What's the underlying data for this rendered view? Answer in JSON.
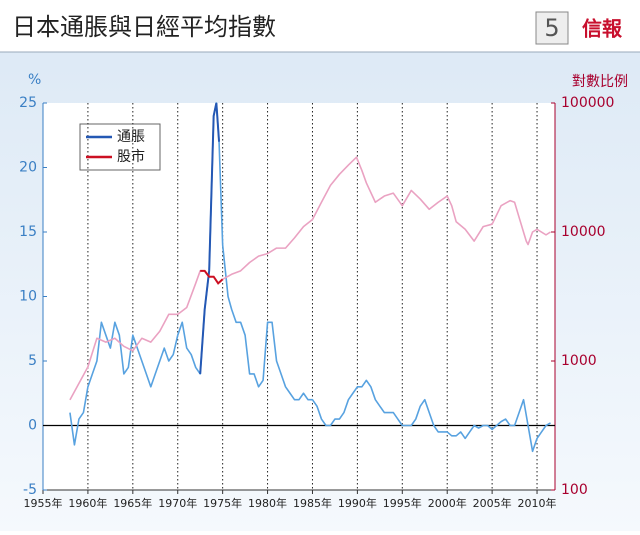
{
  "chart_data": {
    "type": "line",
    "title": "日本通脹與日經平均指數",
    "badge": "5",
    "source": "信報",
    "ylabel": "%",
    "y2label": "對數比例",
    "xlim": [
      1955,
      2012
    ],
    "xticks": [
      {
        "value": 1955,
        "label": "1955年"
      },
      {
        "value": 1960,
        "label": "1960年"
      },
      {
        "value": 1965,
        "label": "1965年"
      },
      {
        "value": 1970,
        "label": "1970年"
      },
      {
        "value": 1975,
        "label": "1975年"
      },
      {
        "value": 1980,
        "label": "1980年"
      },
      {
        "value": 1985,
        "label": "1985年"
      },
      {
        "value": 1990,
        "label": "1990年"
      },
      {
        "value": 1995,
        "label": "1995年"
      },
      {
        "value": 2000,
        "label": "2000年"
      },
      {
        "value": 2005,
        "label": "2005年"
      },
      {
        "value": 2010,
        "label": "2010年"
      }
    ],
    "ylim": [
      -5,
      25
    ],
    "yticks": [
      -5,
      0,
      5,
      10,
      15,
      20,
      25
    ],
    "y2lim": [
      100,
      100000
    ],
    "y2ticks": [
      100,
      1000,
      10000,
      100000
    ],
    "y2log": true,
    "grid": true,
    "zero_line": 0,
    "legend": "top-left",
    "series": [
      {
        "name": "通脹",
        "color": "#58a2e0",
        "highlight_color": "#2458b4",
        "highlight_range": [
          1972.5,
          1974.6
        ],
        "x": [
          1958,
          1958.5,
          1959,
          1959.5,
          1960,
          1960.5,
          1961,
          1961.5,
          1962,
          1962.5,
          1963,
          1963.5,
          1964,
          1964.5,
          1965,
          1965.5,
          1966,
          1966.5,
          1967,
          1967.5,
          1968,
          1968.5,
          1969,
          1969.5,
          1970,
          1970.5,
          1971,
          1971.5,
          1972,
          1972.5,
          1973,
          1973.5,
          1974,
          1974.3,
          1974.6,
          1975,
          1975.3,
          1975.6,
          1976,
          1976.5,
          1977,
          1977.5,
          1978,
          1978.5,
          1979,
          1979.5,
          1980,
          1980.5,
          1981,
          1981.5,
          1982,
          1982.5,
          1983,
          1983.5,
          1984,
          1984.5,
          1985,
          1985.5,
          1986,
          1986.5,
          1987,
          1987.5,
          1988,
          1988.5,
          1989,
          1989.5,
          1990,
          1990.5,
          1991,
          1991.5,
          1992,
          1992.5,
          1993,
          1993.5,
          1994,
          1994.5,
          1995,
          1995.5,
          1996,
          1996.5,
          1997,
          1997.5,
          1998,
          1998.5,
          1999,
          1999.5,
          2000,
          2000.5,
          2001,
          2001.5,
          2002,
          2002.5,
          2003,
          2003.5,
          2004,
          2004.5,
          2005,
          2005.5,
          2006,
          2006.5,
          2007,
          2007.5,
          2008,
          2008.5,
          2009,
          2009.5,
          2010,
          2010.5,
          2011,
          2011.5
        ],
        "values": [
          1,
          -1.5,
          0.5,
          1,
          3,
          4,
          5,
          8,
          7,
          6,
          8,
          7,
          4,
          4.5,
          7,
          6,
          5,
          4,
          3,
          4,
          5,
          6,
          5,
          5.5,
          7,
          8,
          6,
          5.5,
          4.5,
          4,
          9,
          12,
          24,
          25,
          22,
          14,
          12,
          10,
          9,
          8,
          8,
          7,
          4,
          4,
          3,
          3.5,
          8,
          8,
          5,
          4,
          3,
          2.5,
          2,
          2,
          2.5,
          2,
          2,
          1.5,
          0.5,
          0,
          0,
          0.5,
          0.5,
          1,
          2,
          2.5,
          3,
          3,
          3.5,
          3,
          2,
          1.5,
          1,
          1,
          1,
          0.5,
          0,
          0,
          0,
          0.5,
          1.5,
          2,
          1,
          0,
          -0.5,
          -0.5,
          -0.5,
          -0.8,
          -0.8,
          -0.5,
          -1,
          -0.5,
          0,
          -0.2,
          0,
          0,
          -0.3,
          0,
          0.3,
          0.5,
          0,
          0,
          1,
          2,
          0,
          -2,
          -1,
          -0.5,
          0,
          0.2
        ]
      },
      {
        "name": "股市",
        "color": "#eaa2c2",
        "highlight_color": "#cc1022",
        "highlight_range": [
          1972.5,
          1975
        ],
        "axis": "y2",
        "x": [
          1958,
          1960,
          1961,
          1962,
          1963,
          1964,
          1965,
          1966,
          1967,
          1968,
          1969,
          1970,
          1971,
          1972,
          1972.5,
          1973,
          1973.5,
          1974,
          1974.5,
          1975,
          1976,
          1977,
          1978,
          1979,
          1980,
          1981,
          1982,
          1983,
          1984,
          1985,
          1986,
          1987,
          1988,
          1989,
          1989.9,
          1990.5,
          1991,
          1992,
          1993,
          1994,
          1995,
          1996,
          1997,
          1998,
          1999,
          2000,
          2000.5,
          2001,
          2002,
          2003,
          2004,
          2005,
          2006,
          2007,
          2007.5,
          2008,
          2008.8,
          2009,
          2009.5,
          2010,
          2011,
          2011.5
        ],
        "values": [
          500,
          900,
          1500,
          1400,
          1500,
          1300,
          1200,
          1500,
          1400,
          1700,
          2300,
          2300,
          2600,
          4000,
          5000,
          5000,
          4500,
          4500,
          4000,
          4300,
          4700,
          5000,
          5800,
          6500,
          6800,
          7500,
          7500,
          9000,
          11000,
          12500,
          17000,
          23000,
          28000,
          33000,
          38000,
          30000,
          24000,
          17000,
          19000,
          20000,
          16000,
          21000,
          18000,
          15000,
          17000,
          19000,
          16000,
          12000,
          10500,
          8500,
          11000,
          11500,
          16000,
          17500,
          17000,
          13000,
          8500,
          8000,
          10000,
          10500,
          9500,
          10000
        ]
      }
    ]
  }
}
